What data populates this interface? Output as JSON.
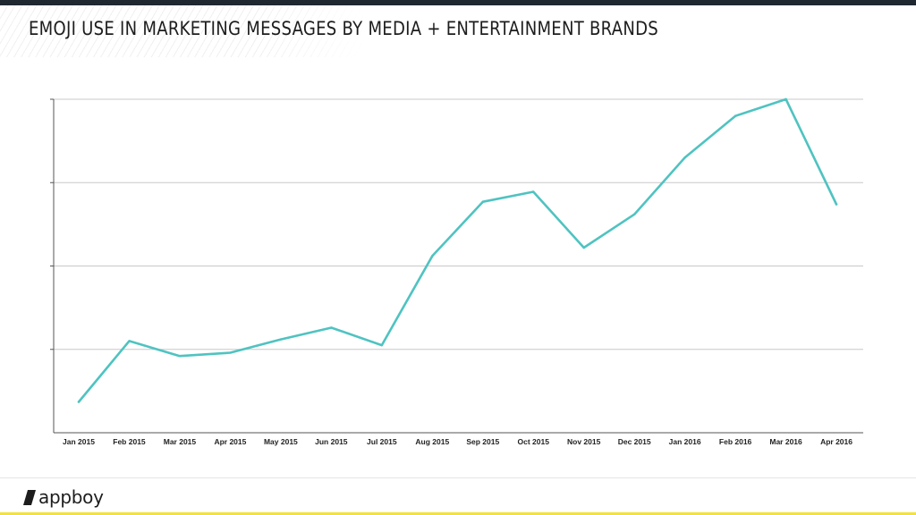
{
  "header": {
    "title": "EMOJI USE IN MARKETING MESSAGES BY MEDIA + ENTERTAINMENT BRANDS"
  },
  "brand": {
    "logo_text": "appboy",
    "accent_color": "#f2e23a",
    "bar_color": "#1f2730"
  },
  "chart_data": {
    "type": "line",
    "title": "EMOJI USE IN MARKETING MESSAGES BY MEDIA + ENTERTAINMENT BRANDS",
    "xlabel": "",
    "ylabel": "",
    "categories": [
      "Jan 2015",
      "Feb 2015",
      "Mar 2015",
      "Apr 2015",
      "May 2015",
      "Jun 2015",
      "Jul 2015",
      "Aug 2015",
      "Sep 2015",
      "Oct 2015",
      "Nov 2015",
      "Dec 2015",
      "Jan 2016",
      "Feb 2016",
      "Mar 2016",
      "Apr 2016"
    ],
    "series": [
      {
        "color": "#4fc3c1",
        "values": [
          0.37,
          1.1,
          0.92,
          0.96,
          1.12,
          1.26,
          1.05,
          2.12,
          2.77,
          2.89,
          2.22,
          2.62,
          3.3,
          3.8,
          4.0,
          2.74
        ]
      }
    ],
    "ylim": [
      0,
      4
    ],
    "y_ticks": [
      0,
      1,
      2,
      3,
      4
    ],
    "y_tick_labels_visible": false,
    "grid": "horizontal",
    "legend": "none"
  }
}
